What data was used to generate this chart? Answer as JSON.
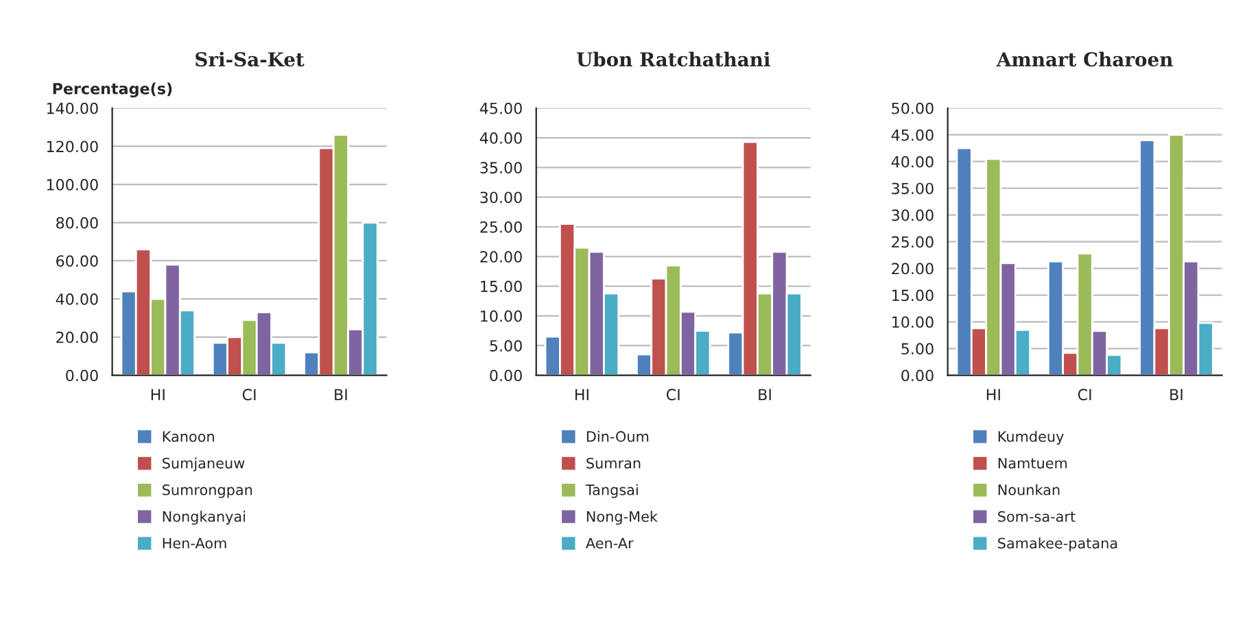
{
  "chart_data": [
    {
      "type": "bar",
      "title": "Sri-Sa-Ket",
      "ylabel": "Percentage(s)",
      "categories": [
        "HI",
        "CI",
        "BI"
      ],
      "ylim": [
        0,
        140
      ],
      "yticks": [
        {
          "value": 0,
          "label": "0.00"
        },
        {
          "value": 20,
          "label": "20.00"
        },
        {
          "value": 40,
          "label": "40.00"
        },
        {
          "value": 60,
          "label": "60.00"
        },
        {
          "value": 80,
          "label": "80.00"
        },
        {
          "value": 100,
          "label": "100.00"
        },
        {
          "value": 120,
          "label": "120.00"
        },
        {
          "value": 140,
          "label": "140.00"
        }
      ],
      "grid": "y",
      "legend": "bottom",
      "series": [
        {
          "name": "Kanoon",
          "color": "#4f81bd",
          "values": [
            44,
            17,
            12
          ]
        },
        {
          "name": "Sumjaneuw",
          "color": "#c0504d",
          "values": [
            66,
            20,
            119
          ]
        },
        {
          "name": "Sumrongpan",
          "color": "#9bbb59",
          "values": [
            40,
            29,
            126
          ]
        },
        {
          "name": "Nongkanyai",
          "color": "#8064a2",
          "values": [
            58,
            33,
            24
          ]
        },
        {
          "name": "Hen-Aom",
          "color": "#4bacc6",
          "values": [
            34,
            17,
            80
          ]
        }
      ]
    },
    {
      "type": "bar",
      "title": "Ubon Ratchathani",
      "categories": [
        "HI",
        "CI",
        "BI"
      ],
      "ylim": [
        0,
        45
      ],
      "yticks": [
        {
          "value": 0,
          "label": "0.00"
        },
        {
          "value": 5,
          "label": "5.00"
        },
        {
          "value": 10,
          "label": "10.00"
        },
        {
          "value": 15,
          "label": "15.00"
        },
        {
          "value": 20,
          "label": "20.00"
        },
        {
          "value": 25,
          "label": "25.00"
        },
        {
          "value": 30,
          "label": "30.00"
        },
        {
          "value": 35,
          "label": "35.00"
        },
        {
          "value": 40,
          "label": "40.00"
        },
        {
          "value": 45,
          "label": "45.00"
        }
      ],
      "grid": "y",
      "legend": "bottom",
      "series": [
        {
          "name": "Din-Oum",
          "color": "#4f81bd",
          "values": [
            6.5,
            3.5,
            7.2
          ]
        },
        {
          "name": "Sumran",
          "color": "#c0504d",
          "values": [
            25.5,
            16.3,
            39.3
          ]
        },
        {
          "name": "Tangsai",
          "color": "#9bbb59",
          "values": [
            21.5,
            18.5,
            13.8
          ]
        },
        {
          "name": "Nong-Mek",
          "color": "#8064a2",
          "values": [
            20.8,
            10.7,
            20.8
          ]
        },
        {
          "name": "Aen-Ar",
          "color": "#4bacc6",
          "values": [
            13.8,
            7.5,
            13.8
          ]
        }
      ]
    },
    {
      "type": "bar",
      "title": "Amnart Charoen",
      "categories": [
        "HI",
        "CI",
        "BI"
      ],
      "ylim": [
        0,
        50
      ],
      "yticks": [
        {
          "value": 0,
          "label": "0.00"
        },
        {
          "value": 5,
          "label": "5.00"
        },
        {
          "value": 10,
          "label": "10.00"
        },
        {
          "value": 15,
          "label": "15.00"
        },
        {
          "value": 20,
          "label": "20.00"
        },
        {
          "value": 25,
          "label": "25.00"
        },
        {
          "value": 30,
          "label": "30.00"
        },
        {
          "value": 35,
          "label": "35.00"
        },
        {
          "value": 40,
          "label": "40.00"
        },
        {
          "value": 45,
          "label": "45.00"
        },
        {
          "value": 50,
          "label": "50.00"
        }
      ],
      "grid": "y",
      "legend": "bottom",
      "series": [
        {
          "name": "Kumdeuy",
          "color": "#4f81bd",
          "values": [
            42.5,
            21.3,
            44
          ]
        },
        {
          "name": "Namtuem",
          "color": "#c0504d",
          "values": [
            8.8,
            4.2,
            8.8
          ]
        },
        {
          "name": "Nounkan",
          "color": "#9bbb59",
          "values": [
            40.5,
            22.8,
            45
          ]
        },
        {
          "name": "Som-sa-art",
          "color": "#8064a2",
          "values": [
            21,
            8.3,
            21.3
          ]
        },
        {
          "name": "Samakee-patana",
          "color": "#4bacc6",
          "values": [
            8.5,
            3.8,
            9.8
          ]
        }
      ]
    }
  ]
}
